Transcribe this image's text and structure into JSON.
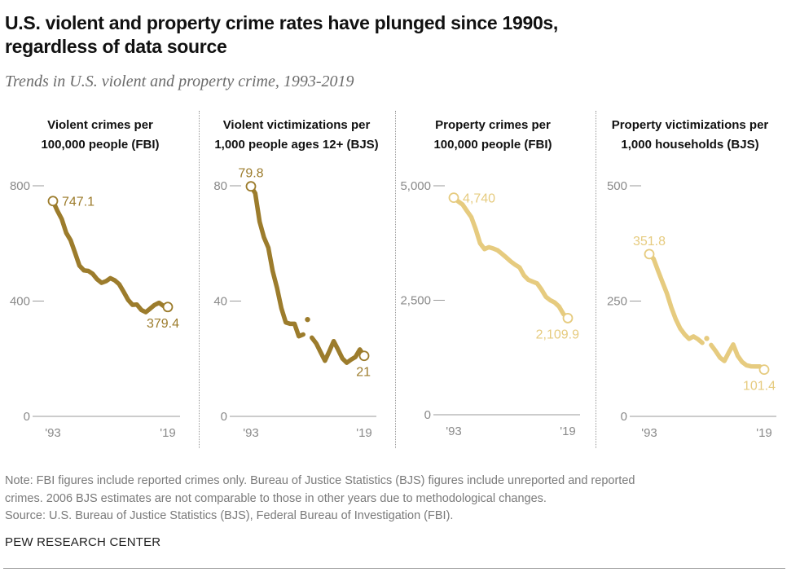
{
  "header": {
    "title_line1": "U.S. violent and property crime rates have plunged since 1990s,",
    "title_line2": "regardless of data source",
    "subtitle": "Trends in U.S. violent and property crime, 1993-2019"
  },
  "footer": {
    "note_line1": "Note: FBI figures include reported crimes only. Bureau of Justice Statistics (BJS) figures include unreported and reported",
    "note_line2": "crimes. 2006 BJS estimates are not comparable to those in other years due to methodological changes.",
    "source": "Source: U.S. Bureau of Justice Statistics (BJS), Federal Bureau of Investigation (FBI).",
    "brand": "PEW RESEARCH CENTER"
  },
  "colors": {
    "violent": "#9c7c2c",
    "property": "#e6cb7f",
    "axis": "#9a9a9a",
    "tick_text": "#8a8a8a"
  },
  "chart_data": [
    {
      "type": "line",
      "title_line1": "Violent crimes per",
      "title_line2": "100,000 people (FBI)",
      "color_key": "violent",
      "x": [
        1993,
        1994,
        1995,
        1996,
        1997,
        1998,
        1999,
        2000,
        2001,
        2002,
        2003,
        2004,
        2005,
        2006,
        2007,
        2008,
        2009,
        2010,
        2011,
        2012,
        2013,
        2014,
        2015,
        2016,
        2017,
        2018,
        2019
      ],
      "series": [
        {
          "name": "Violent crimes per 100,000 people (FBI)",
          "values": [
            747.1,
            713.6,
            684.5,
            636.6,
            611.0,
            567.6,
            523.0,
            506.5,
            504.5,
            494.4,
            475.8,
            463.2,
            469.0,
            479.3,
            471.8,
            458.6,
            431.9,
            404.5,
            387.1,
            387.8,
            369.1,
            361.6,
            373.7,
            386.3,
            394.0,
            383.4,
            379.4
          ]
        }
      ],
      "ylim": [
        0,
        800
      ],
      "yticks": [
        0,
        400,
        800
      ],
      "ytick_labels": [
        "0",
        "400",
        "800"
      ],
      "xtick_labels": [
        "'93",
        "'19"
      ],
      "start_label": "747.1",
      "end_label": "379.4",
      "grid": false
    },
    {
      "type": "line",
      "title_line1": "Violent victimizations per",
      "title_line2": "1,000 people ages 12+ (BJS)",
      "color_key": "violent",
      "x": [
        1993,
        1994,
        1995,
        1996,
        1997,
        1998,
        1999,
        2000,
        2001,
        2002,
        2003,
        2004,
        2005,
        2006,
        2007,
        2008,
        2009,
        2010,
        2011,
        2012,
        2013,
        2014,
        2015,
        2016,
        2017,
        2018,
        2019
      ],
      "series": [
        {
          "name": "Violent victimizations per 1,000 people ages 12+ (BJS)",
          "values": [
            79.8,
            77.4,
            67.5,
            62.1,
            58.5,
            50.4,
            44.5,
            37.5,
            32.6,
            32.1,
            32.1,
            27.8,
            28.4,
            33.6,
            27.3,
            25.3,
            22.3,
            19.3,
            22.6,
            26.1,
            23.2,
            20.1,
            18.6,
            19.7,
            20.6,
            23.2,
            21.0
          ]
        }
      ],
      "break_year": 2006,
      "ylim": [
        0,
        80
      ],
      "yticks": [
        0,
        40,
        80
      ],
      "ytick_labels": [
        "0",
        "40",
        "80"
      ],
      "xtick_labels": [
        "'93",
        "'19"
      ],
      "start_label": "79.8",
      "end_label": "21",
      "grid": false
    },
    {
      "type": "line",
      "title_line1": "Property crimes per",
      "title_line2": "100,000 people (FBI)",
      "color_key": "property",
      "x": [
        1993,
        1994,
        1995,
        1996,
        1997,
        1998,
        1999,
        2000,
        2001,
        2002,
        2003,
        2004,
        2005,
        2006,
        2007,
        2008,
        2009,
        2010,
        2011,
        2012,
        2013,
        2014,
        2015,
        2016,
        2017,
        2018,
        2019
      ],
      "series": [
        {
          "name": "Property crimes per 100,000 people (FBI)",
          "values": [
            4740,
            4660.2,
            4590.5,
            4451.0,
            4316.3,
            4052.5,
            3743.6,
            3618.3,
            3658.1,
            3630.6,
            3591.2,
            3514.1,
            3431.5,
            3346.6,
            3276.4,
            3214.6,
            3041.3,
            2945.9,
            2905.4,
            2868.0,
            2733.6,
            2574.1,
            2500.5,
            2451.6,
            2362.2,
            2199.5,
            2109.9
          ]
        }
      ],
      "ylim": [
        0,
        5000
      ],
      "yticks": [
        0,
        2500,
        5000
      ],
      "ytick_labels": [
        "0",
        "2,500",
        "5,000"
      ],
      "xtick_labels": [
        "'93",
        "'19"
      ],
      "start_label": "4,740",
      "end_label": "2,109.9",
      "grid": false
    },
    {
      "type": "line",
      "title_line1": "Property victimizations per",
      "title_line2": "1,000 households (BJS)",
      "color_key": "property",
      "x": [
        1993,
        1994,
        1995,
        1996,
        1997,
        1998,
        1999,
        2000,
        2001,
        2002,
        2003,
        2004,
        2005,
        2006,
        2007,
        2008,
        2009,
        2010,
        2011,
        2012,
        2013,
        2014,
        2015,
        2016,
        2017,
        2018,
        2019
      ],
      "series": [
        {
          "name": "Property victimizations per 1,000 households (BJS)",
          "values": [
            351.8,
            341.2,
            315.5,
            290.5,
            266.3,
            235.8,
            210.6,
            190.4,
            177.7,
            168.2,
            173.4,
            167.5,
            159.5,
            169.0,
            154.8,
            142.1,
            127.4,
            120.2,
            138.7,
            155.8,
            131.4,
            118.1,
            110.7,
            108.4,
            108.2,
            108.2,
            101.4
          ]
        }
      ],
      "break_year": 2006,
      "ylim": [
        0,
        500
      ],
      "yticks": [
        0,
        250,
        500
      ],
      "ytick_labels": [
        "0",
        "250",
        "500"
      ],
      "xtick_labels": [
        "'93",
        "'19"
      ],
      "start_label": "351.8",
      "end_label": "101.4",
      "grid": false
    }
  ]
}
